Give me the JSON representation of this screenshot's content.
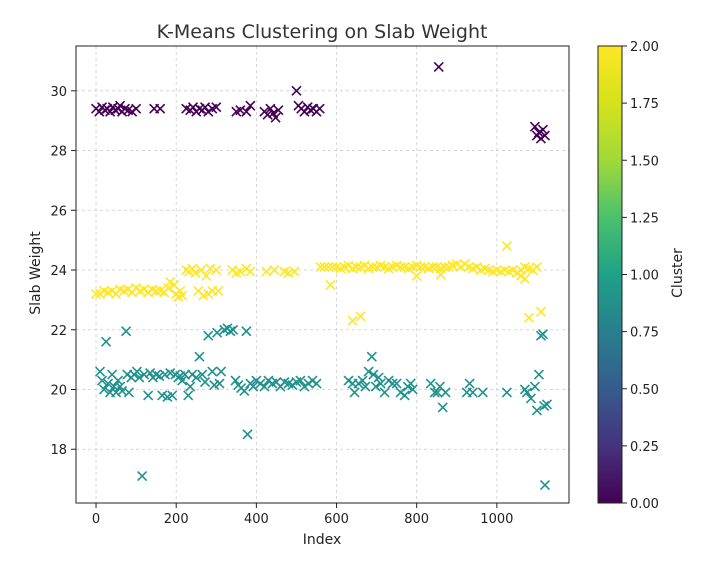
{
  "chart_data": {
    "type": "scatter",
    "title": "K-Means Clustering on Slab Weight",
    "xlabel": "Index",
    "ylabel": "Slab Weight",
    "xlim": [
      -50,
      1180
    ],
    "ylim": [
      16.2,
      31.5
    ],
    "xticks": [
      0,
      200,
      400,
      600,
      800,
      1000
    ],
    "yticks": [
      18,
      20,
      22,
      24,
      26,
      28,
      30
    ],
    "grid": true,
    "marker": "x",
    "colormap": "viridis",
    "colorbar": {
      "label": "Cluster",
      "range": [
        0,
        2
      ],
      "ticks": [
        "0.00",
        "0.25",
        "0.50",
        "0.75",
        "1.00",
        "1.25",
        "1.50",
        "1.75",
        "2.00"
      ]
    },
    "colors": {
      "cluster_0": "#440154",
      "cluster_1": "#21918c",
      "cluster_2": "#fde725"
    },
    "series": [
      {
        "cluster": 0,
        "points": [
          [
            0,
            29.4
          ],
          [
            8,
            29.3
          ],
          [
            15,
            29.45
          ],
          [
            22,
            29.35
          ],
          [
            28,
            29.4
          ],
          [
            35,
            29.3
          ],
          [
            42,
            29.45
          ],
          [
            48,
            29.35
          ],
          [
            55,
            29.4
          ],
          [
            60,
            29.5
          ],
          [
            65,
            29.3
          ],
          [
            72,
            29.4
          ],
          [
            80,
            29.35
          ],
          [
            90,
            29.3
          ],
          [
            100,
            29.4
          ],
          [
            145,
            29.4
          ],
          [
            160,
            29.4
          ],
          [
            225,
            29.4
          ],
          [
            235,
            29.35
          ],
          [
            242,
            29.45
          ],
          [
            250,
            29.3
          ],
          [
            258,
            29.4
          ],
          [
            265,
            29.35
          ],
          [
            272,
            29.45
          ],
          [
            280,
            29.3
          ],
          [
            290,
            29.4
          ],
          [
            300,
            29.45
          ],
          [
            350,
            29.3
          ],
          [
            360,
            29.35
          ],
          [
            375,
            29.3
          ],
          [
            385,
            29.5
          ],
          [
            420,
            29.3
          ],
          [
            428,
            29.2
          ],
          [
            435,
            29.4
          ],
          [
            442,
            29.25
          ],
          [
            448,
            29.1
          ],
          [
            455,
            29.35
          ],
          [
            500,
            30.0
          ],
          [
            505,
            29.5
          ],
          [
            512,
            29.4
          ],
          [
            520,
            29.3
          ],
          [
            528,
            29.45
          ],
          [
            535,
            29.35
          ],
          [
            542,
            29.4
          ],
          [
            550,
            29.3
          ],
          [
            558,
            29.4
          ],
          [
            855,
            30.8
          ],
          [
            1095,
            28.8
          ],
          [
            1100,
            28.5
          ],
          [
            1105,
            28.6
          ],
          [
            1110,
            28.4
          ],
          [
            1115,
            28.7
          ],
          [
            1120,
            28.5
          ]
        ]
      },
      {
        "cluster": 1,
        "points": [
          [
            10,
            20.6
          ],
          [
            15,
            20.3
          ],
          [
            20,
            20.0
          ],
          [
            25,
            21.6
          ],
          [
            30,
            20.2
          ],
          [
            35,
            19.9
          ],
          [
            40,
            20.5
          ],
          [
            45,
            20.1
          ],
          [
            50,
            19.9
          ],
          [
            55,
            20.3
          ],
          [
            60,
            20.1
          ],
          [
            65,
            19.95
          ],
          [
            75,
            21.95
          ],
          [
            78,
            20.5
          ],
          [
            82,
            19.9
          ],
          [
            88,
            20.4
          ],
          [
            95,
            20.5
          ],
          [
            102,
            20.6
          ],
          [
            108,
            20.4
          ],
          [
            115,
            17.1
          ],
          [
            120,
            20.5
          ],
          [
            130,
            19.8
          ],
          [
            135,
            20.55
          ],
          [
            142,
            20.4
          ],
          [
            150,
            20.5
          ],
          [
            158,
            20.45
          ],
          [
            165,
            19.8
          ],
          [
            172,
            20.5
          ],
          [
            178,
            19.75
          ],
          [
            185,
            20.55
          ],
          [
            190,
            19.8
          ],
          [
            198,
            20.5
          ],
          [
            205,
            20.4
          ],
          [
            210,
            20.45
          ],
          [
            215,
            20.3
          ],
          [
            222,
            20.5
          ],
          [
            230,
            19.8
          ],
          [
            235,
            20.1
          ],
          [
            240,
            20.5
          ],
          [
            250,
            20.4
          ],
          [
            258,
            21.1
          ],
          [
            265,
            20.5
          ],
          [
            272,
            20.25
          ],
          [
            280,
            21.8
          ],
          [
            290,
            20.6
          ],
          [
            295,
            20.15
          ],
          [
            302,
            21.9
          ],
          [
            308,
            20.2
          ],
          [
            312,
            20.6
          ],
          [
            320,
            22.0
          ],
          [
            328,
            22.05
          ],
          [
            335,
            21.95
          ],
          [
            342,
            22.0
          ],
          [
            348,
            20.3
          ],
          [
            355,
            20.15
          ],
          [
            362,
            20.05
          ],
          [
            370,
            19.95
          ],
          [
            375,
            21.95
          ],
          [
            378,
            18.5
          ],
          [
            385,
            20.2
          ],
          [
            392,
            20.1
          ],
          [
            400,
            20.3
          ],
          [
            410,
            20.2
          ],
          [
            420,
            20.1
          ],
          [
            430,
            20.3
          ],
          [
            440,
            20.2
          ],
          [
            450,
            20.25
          ],
          [
            460,
            20.1
          ],
          [
            470,
            20.25
          ],
          [
            480,
            20.2
          ],
          [
            490,
            20.15
          ],
          [
            500,
            20.25
          ],
          [
            510,
            20.3
          ],
          [
            520,
            20.1
          ],
          [
            530,
            20.2
          ],
          [
            540,
            20.3
          ],
          [
            550,
            20.2
          ],
          [
            630,
            20.3
          ],
          [
            640,
            20.2
          ],
          [
            645,
            19.9
          ],
          [
            655,
            20.2
          ],
          [
            665,
            20.3
          ],
          [
            672,
            20.1
          ],
          [
            680,
            20.6
          ],
          [
            688,
            21.1
          ],
          [
            692,
            20.5
          ],
          [
            698,
            20.1
          ],
          [
            705,
            20.4
          ],
          [
            710,
            20.2
          ],
          [
            720,
            19.9
          ],
          [
            730,
            20.3
          ],
          [
            740,
            20.2
          ],
          [
            750,
            20.2
          ],
          [
            760,
            19.9
          ],
          [
            770,
            19.8
          ],
          [
            778,
            20.1
          ],
          [
            785,
            20.2
          ],
          [
            790,
            20.0
          ],
          [
            835,
            20.2
          ],
          [
            845,
            19.9
          ],
          [
            852,
            19.9
          ],
          [
            858,
            20.1
          ],
          [
            865,
            19.4
          ],
          [
            872,
            19.9
          ],
          [
            925,
            19.9
          ],
          [
            932,
            20.2
          ],
          [
            940,
            19.9
          ],
          [
            965,
            19.9
          ],
          [
            1025,
            19.9
          ],
          [
            1070,
            20.0
          ],
          [
            1075,
            19.9
          ],
          [
            1085,
            19.7
          ],
          [
            1095,
            20.1
          ],
          [
            1100,
            19.3
          ],
          [
            1105,
            20.5
          ],
          [
            1110,
            21.8
          ],
          [
            1115,
            21.85
          ],
          [
            1118,
            19.45
          ],
          [
            1120,
            16.8
          ],
          [
            1125,
            19.5
          ]
        ]
      },
      {
        "cluster": 2,
        "points": [
          [
            0,
            23.2
          ],
          [
            10,
            23.2
          ],
          [
            20,
            23.3
          ],
          [
            30,
            23.25
          ],
          [
            40,
            23.3
          ],
          [
            50,
            23.2
          ],
          [
            60,
            23.35
          ],
          [
            70,
            23.3
          ],
          [
            80,
            23.35
          ],
          [
            90,
            23.25
          ],
          [
            100,
            23.4
          ],
          [
            110,
            23.3
          ],
          [
            120,
            23.35
          ],
          [
            130,
            23.25
          ],
          [
            140,
            23.35
          ],
          [
            150,
            23.3
          ],
          [
            160,
            23.3
          ],
          [
            170,
            23.25
          ],
          [
            180,
            23.4
          ],
          [
            185,
            23.6
          ],
          [
            195,
            23.5
          ],
          [
            200,
            23.2
          ],
          [
            205,
            23.1
          ],
          [
            210,
            23.3
          ],
          [
            215,
            23.15
          ],
          [
            225,
            24.0
          ],
          [
            232,
            23.95
          ],
          [
            240,
            24.05
          ],
          [
            248,
            23.9
          ],
          [
            255,
            23.3
          ],
          [
            262,
            24.0
          ],
          [
            268,
            23.15
          ],
          [
            275,
            23.8
          ],
          [
            280,
            23.2
          ],
          [
            285,
            24.05
          ],
          [
            290,
            23.3
          ],
          [
            300,
            24.0
          ],
          [
            305,
            23.3
          ],
          [
            340,
            24.0
          ],
          [
            350,
            23.9
          ],
          [
            360,
            23.95
          ],
          [
            375,
            24.05
          ],
          [
            385,
            23.95
          ],
          [
            425,
            23.95
          ],
          [
            445,
            24.0
          ],
          [
            470,
            23.95
          ],
          [
            480,
            23.9
          ],
          [
            495,
            23.95
          ],
          [
            560,
            24.1
          ],
          [
            570,
            24.1
          ],
          [
            580,
            24.1
          ],
          [
            590,
            24.1
          ],
          [
            600,
            24.1
          ],
          [
            610,
            24.05
          ],
          [
            620,
            24.1
          ],
          [
            630,
            24.15
          ],
          [
            640,
            24.05
          ],
          [
            650,
            24.1
          ],
          [
            660,
            24.1
          ],
          [
            670,
            24.15
          ],
          [
            680,
            24.05
          ],
          [
            690,
            24.1
          ],
          [
            700,
            24.1
          ],
          [
            710,
            24.15
          ],
          [
            720,
            24.1
          ],
          [
            730,
            24.05
          ],
          [
            740,
            24.1
          ],
          [
            750,
            24.15
          ],
          [
            760,
            24.1
          ],
          [
            770,
            24.1
          ],
          [
            780,
            24.05
          ],
          [
            790,
            24.1
          ],
          [
            800,
            24.15
          ],
          [
            810,
            24.1
          ],
          [
            820,
            24.1
          ],
          [
            830,
            24.05
          ],
          [
            840,
            24.1
          ],
          [
            850,
            24.1
          ],
          [
            860,
            24.05
          ],
          [
            870,
            24.1
          ],
          [
            880,
            24.1
          ],
          [
            890,
            24.15
          ],
          [
            900,
            24.2
          ],
          [
            910,
            24.1
          ],
          [
            920,
            24.2
          ],
          [
            930,
            24.1
          ],
          [
            940,
            24.05
          ],
          [
            950,
            24.1
          ],
          [
            960,
            24.0
          ],
          [
            970,
            24.05
          ],
          [
            980,
            24.0
          ],
          [
            990,
            23.95
          ],
          [
            1000,
            24.0
          ],
          [
            1010,
            23.95
          ],
          [
            1020,
            24.0
          ],
          [
            1030,
            23.95
          ],
          [
            1040,
            24.0
          ],
          [
            1050,
            23.9
          ],
          [
            1060,
            24.0
          ],
          [
            1070,
            24.1
          ],
          [
            1080,
            24.05
          ],
          [
            1090,
            24.0
          ],
          [
            1100,
            24.1
          ],
          [
            585,
            23.5
          ],
          [
            640,
            22.3
          ],
          [
            660,
            22.45
          ],
          [
            800,
            23.8
          ],
          [
            860,
            23.85
          ],
          [
            1025,
            24.8
          ],
          [
            1060,
            23.8
          ],
          [
            1070,
            23.7
          ],
          [
            1080,
            22.4
          ],
          [
            1110,
            22.6
          ]
        ]
      }
    ]
  }
}
